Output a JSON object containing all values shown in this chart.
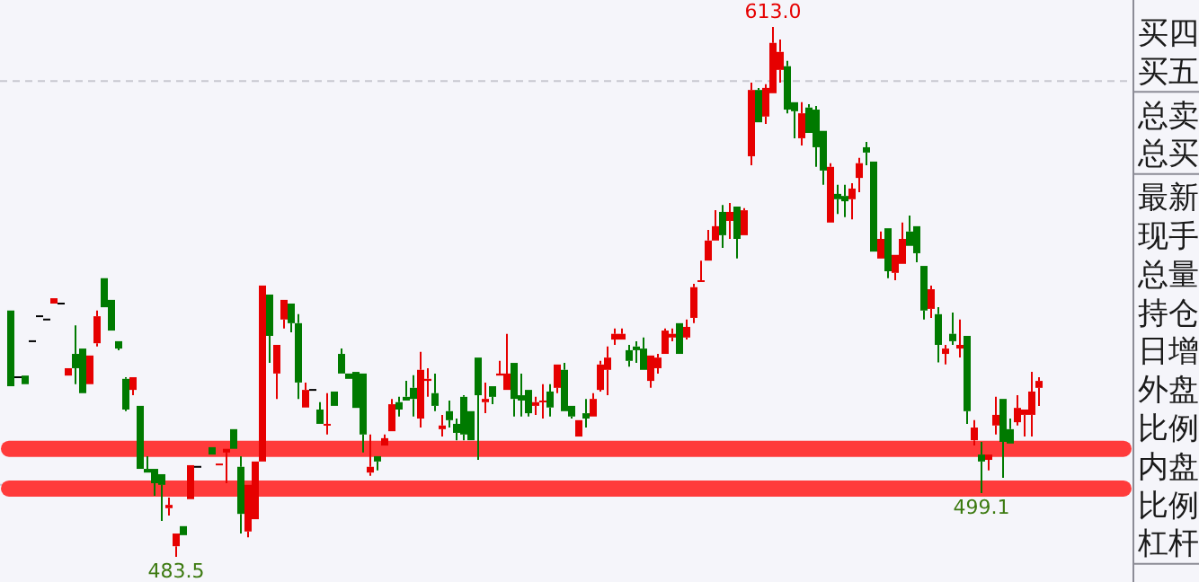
{
  "chart_data": [
    {
      "type": "candlestick",
      "categories": [
        null,
        null,
        null,
        null,
        null,
        null,
        null,
        null,
        null,
        null,
        null,
        null,
        null,
        null,
        null,
        null,
        null,
        null,
        null,
        null,
        null,
        null,
        null,
        null,
        null,
        null,
        null,
        null,
        null,
        null,
        null,
        null,
        null,
        null,
        null,
        null,
        null,
        null,
        null,
        null,
        null,
        null,
        null,
        null,
        null,
        null,
        null,
        null,
        null,
        null,
        null,
        null,
        null,
        null,
        null,
        null,
        null,
        null,
        null,
        null,
        null,
        null,
        null,
        null,
        null,
        null,
        null,
        null,
        null,
        null,
        null,
        null,
        null,
        null,
        null,
        null,
        null,
        null,
        null,
        null,
        null,
        null,
        null,
        null,
        null,
        null,
        null,
        null,
        null,
        null,
        null,
        null,
        null,
        null,
        null,
        null,
        null,
        null,
        null,
        null,
        null,
        null,
        null,
        null,
        null,
        null,
        null,
        null,
        null,
        null,
        null,
        null,
        null,
        null,
        null,
        null,
        null,
        null,
        null,
        null,
        null,
        null,
        null,
        null,
        null,
        null,
        null,
        null,
        null,
        null,
        null,
        null,
        null,
        null,
        null,
        null,
        null,
        null,
        null,
        null,
        null,
        null,
        null,
        null
      ],
      "ohlc": [
        [
          543.7,
          543.7,
          525.2,
          525.2
        ],
        [
          527.4,
          527.4,
          527.4,
          527.4
        ],
        [
          527.8,
          527.8,
          525.7,
          525.7
        ],
        [
          536.2,
          536.2,
          536.2,
          536.2
        ],
        [
          542.3,
          542.3,
          542.3,
          542.3
        ],
        [
          541.5,
          541.5,
          541.5,
          541.5
        ],
        [
          545.4,
          546.7,
          545.4,
          546.7
        ],
        [
          545.4,
          545.4,
          545.4,
          545.4
        ],
        [
          527.8,
          529.6,
          527.8,
          529.6
        ],
        [
          533.1,
          540.1,
          525.7,
          529.6
        ],
        [
          534.4,
          534.4,
          523.5,
          523.5
        ],
        [
          525.7,
          532.7,
          525.7,
          532.7
        ],
        [
          535.7,
          543.7,
          534.9,
          542.3
        ],
        [
          551.6,
          551.6,
          544.5,
          544.5
        ],
        [
          546.3,
          546.3,
          538.8,
          538.8
        ],
        [
          536.2,
          536.2,
          534.0,
          534.4
        ],
        [
          527.0,
          527.4,
          519.1,
          519.5
        ],
        [
          524.3,
          527.4,
          523.0,
          527.4
        ],
        [
          520.4,
          520.4,
          505.0,
          505.0
        ],
        [
          505.0,
          508.1,
          504.1,
          504.1
        ],
        [
          505.0,
          505.0,
          498.4,
          501.5
        ],
        [
          503.7,
          503.7,
          492.3,
          501.1
        ],
        [
          495.4,
          498.0,
          493.6,
          496.2
        ],
        [
          486.1,
          489.2,
          483.5,
          489.2
        ],
        [
          491.0,
          491.0,
          488.8,
          488.8
        ],
        [
          497.6,
          505.9,
          497.6,
          505.9
        ],
        [
          505.5,
          505.5,
          505.5,
          505.5
        ],
        null,
        [
          510.3,
          510.3,
          508.5,
          508.5
        ],
        [
          505.9,
          506.3,
          505.9,
          506.3
        ],
        [
          509.0,
          509.9,
          501.5,
          509.9
        ],
        [
          514.7,
          514.7,
          509.9,
          509.9
        ],
        [
          505.5,
          508.1,
          489.2,
          494.0
        ],
        [
          489.7,
          501.1,
          488.3,
          501.1
        ],
        [
          492.7,
          506.8,
          492.7,
          506.8
        ],
        [
          506.8,
          549.8,
          506.8,
          549.8
        ],
        [
          547.6,
          547.6,
          530.9,
          537.5
        ],
        [
          528.3,
          535.3,
          522.1,
          535.3
        ],
        [
          541.5,
          546.3,
          539.3,
          546.3
        ],
        [
          545.4,
          545.4,
          538.4,
          540.6
        ],
        [
          540.6,
          542.8,
          522.1,
          526.1
        ],
        [
          520.0,
          526.1,
          520.0,
          524.3
        ],
        [
          524.3,
          524.3,
          524.3,
          524.3
        ],
        [
          519.5,
          521.3,
          516.0,
          516.0
        ],
        [
          515.6,
          523.5,
          513.4,
          516.0
        ],
        [
          523.9,
          523.9,
          520.4,
          520.4
        ],
        [
          533.1,
          534.4,
          528.3,
          528.3
        ],
        [
          528.3,
          528.3,
          527.0,
          527.0
        ],
        [
          528.7,
          528.7,
          519.9,
          519.9
        ],
        [
          528.3,
          528.3,
          509.0,
          513.4
        ],
        [
          504.1,
          513.4,
          503.3,
          505.5
        ],
        [
          508.1,
          508.1,
          504.6,
          506.8
        ],
        [
          510.7,
          513.4,
          510.7,
          512.5
        ],
        [
          514.2,
          522.1,
          514.2,
          520.8
        ],
        [
          521.3,
          522.6,
          517.8,
          519.5
        ],
        [
          522.6,
          526.5,
          521.7,
          521.7
        ],
        [
          524.8,
          527.9,
          517.8,
          522.1
        ],
        [
          517.3,
          533.6,
          515.1,
          529.2
        ],
        [
          526.5,
          529.6,
          522.6,
          527.0
        ],
        [
          523.5,
          528.3,
          519.1,
          520.4
        ],
        [
          514.7,
          518.2,
          512.9,
          515.6
        ],
        [
          519.1,
          521.7,
          515.1,
          516.9
        ],
        [
          516.0,
          517.3,
          512.0,
          513.8
        ],
        [
          522.6,
          523.0,
          512.0,
          513.4
        ],
        [
          519.1,
          519.1,
          512.0,
          512.0
        ],
        [
          532.2,
          532.2,
          507.2,
          523.0
        ],
        [
          521.3,
          526.1,
          518.6,
          522.1
        ],
        [
          525.2,
          525.2,
          520.8,
          522.6
        ],
        [
          527.8,
          531.4,
          527.8,
          528.3
        ],
        [
          524.3,
          538.0,
          524.3,
          528.3
        ],
        [
          530.9,
          530.9,
          517.8,
          522.1
        ],
        [
          523.0,
          528.3,
          517.8,
          521.7
        ],
        [
          524.3,
          524.3,
          517.8,
          518.6
        ],
        [
          520.4,
          522.6,
          518.2,
          521.3
        ],
        [
          521.3,
          525.7,
          517.3,
          521.7
        ],
        [
          523.9,
          525.7,
          517.8,
          520.0
        ],
        [
          524.8,
          530.5,
          523.5,
          530.5
        ],
        [
          529.2,
          530.9,
          519.1,
          519.1
        ],
        [
          520.4,
          520.4,
          517.3,
          517.8
        ],
        [
          512.9,
          516.9,
          512.9,
          516.9
        ],
        [
          518.6,
          522.1,
          515.1,
          517.3
        ],
        [
          517.8,
          523.5,
          517.8,
          522.1
        ],
        [
          524.3,
          531.4,
          523.9,
          530.5
        ],
        [
          529.2,
          534.9,
          523.0,
          532.2
        ],
        [
          536.6,
          539.3,
          535.3,
          538.0
        ],
        [
          536.6,
          539.3,
          536.6,
          538.0
        ],
        [
          534.0,
          535.3,
          530.0,
          531.4
        ],
        [
          534.9,
          536.2,
          530.9,
          534.0
        ],
        [
          534.4,
          537.1,
          529.2,
          529.2
        ],
        [
          526.5,
          532.7,
          524.8,
          532.7
        ],
        [
          529.6,
          533.1,
          528.3,
          532.2
        ],
        [
          533.1,
          539.3,
          533.1,
          538.8
        ],
        [
          537.1,
          539.3,
          536.2,
          538.0
        ],
        [
          540.6,
          540.6,
          533.1,
          533.1
        ],
        [
          537.1,
          541.5,
          536.6,
          539.7
        ],
        [
          541.9,
          550.2,
          540.6,
          549.4
        ],
        [
          550.7,
          555.9,
          550.7,
          551.1
        ],
        [
          555.9,
          563.4,
          555.9,
          560.8
        ],
        [
          560.8,
          568.2,
          560.8,
          564.3
        ],
        [
          567.8,
          569.5,
          559.0,
          562.1
        ],
        [
          565.6,
          570.0,
          561.2,
          567.8
        ],
        [
          569.1,
          569.1,
          556.4,
          561.2
        ],
        [
          562.1,
          568.7,
          562.1,
          568.2
        ],
        [
          581.4,
          599.4,
          579.2,
          597.6
        ],
        [
          597.6,
          598.1,
          589.7,
          589.7
        ],
        [
          591.1,
          599.0,
          589.3,
          598.1
        ],
        [
          596.8,
          613.0,
          596.8,
          609.1
        ],
        [
          602.5,
          609.9,
          599.4,
          606.9
        ],
        [
          603.4,
          604.7,
          591.9,
          592.8
        ],
        [
          594.6,
          594.6,
          585.8,
          592.4
        ],
        [
          585.8,
          594.6,
          584.0,
          591.9
        ],
        [
          593.3,
          594.1,
          587.1,
          587.1
        ],
        [
          592.8,
          593.7,
          578.8,
          583.6
        ],
        [
          587.6,
          587.6,
          574.4,
          577.9
        ],
        [
          565.2,
          579.7,
          565.2,
          578.8
        ],
        [
          572.2,
          574.4,
          567.3,
          570.9
        ],
        [
          571.7,
          574.4,
          566.5,
          570.4
        ],
        [
          570.9,
          574.8,
          566.0,
          573.5
        ],
        [
          576.1,
          581.0,
          572.6,
          579.7
        ],
        [
          583.6,
          584.9,
          579.2,
          582.3
        ],
        [
          580.1,
          580.1,
          558.1,
          558.1
        ],
        [
          556.4,
          563.0,
          556.4,
          561.2
        ],
        [
          563.8,
          563.8,
          551.6,
          553.3
        ],
        [
          552.9,
          557.3,
          551.1,
          557.3
        ],
        [
          555.1,
          565.2,
          555.1,
          561.2
        ],
        [
          563.0,
          566.9,
          559.5,
          559.5
        ],
        [
          564.3,
          564.3,
          555.5,
          557.7
        ],
        [
          554.6,
          554.6,
          541.5,
          543.7
        ],
        [
          544.1,
          549.8,
          541.9,
          548.9
        ],
        [
          542.8,
          544.5,
          531.0,
          535.3
        ],
        [
          533.1,
          535.3,
          530.5,
          534.4
        ],
        [
          538.0,
          543.2,
          535.3,
          536.2
        ],
        [
          534.4,
          541.5,
          532.2,
          535.3
        ],
        [
          537.5,
          537.5,
          516.0,
          519.1
        ],
        [
          512.0,
          516.9,
          510.7,
          515.1
        ],
        [
          508.5,
          511.6,
          499.1,
          506.8
        ],
        [
          507.2,
          508.5,
          504.6,
          508.5
        ],
        [
          515.6,
          522.6,
          513.4,
          518.2
        ],
        [
          522.1,
          522.1,
          502.8,
          511.6
        ],
        [
          514.7,
          517.3,
          511.2,
          511.2
        ],
        [
          516.4,
          523.0,
          515.6,
          519.9
        ],
        [
          518.2,
          519.5,
          512.9,
          519.5
        ],
        [
          518.2,
          528.7,
          512.9,
          523.9
        ],
        [
          524.8,
          527.4,
          520.4,
          526.5
        ]
      ],
      "ref_lines": [
        {
          "axis": "y",
          "value": 599.8,
          "color": "#c8c8d0",
          "line_style": "dashed"
        },
        {
          "axis": "y",
          "value": 501.1,
          "color": "#c8c8d0",
          "line_style": "dashed"
        },
        {
          "axis": "y",
          "value": 509.9,
          "color": "#ff3b3b",
          "line_style": "solid"
        },
        {
          "axis": "y",
          "value": 500.2,
          "color": "#ff3b3b",
          "line_style": "solid"
        }
      ],
      "annotations": [
        {
          "text": "613.0",
          "y": 613.0
        },
        {
          "text": "483.5",
          "y": 483.5
        },
        {
          "text": "499.1",
          "y": 499.1
        }
      ]
    },
    {
      "type": "other",
      "annotations": [
        "买四",
        "买五",
        "总卖",
        "总买",
        "最新",
        "现手",
        "总量",
        "持仓",
        "日增",
        "外盘",
        "比例",
        "内盘",
        "比例",
        "杠杆"
      ]
    }
  ]
}
